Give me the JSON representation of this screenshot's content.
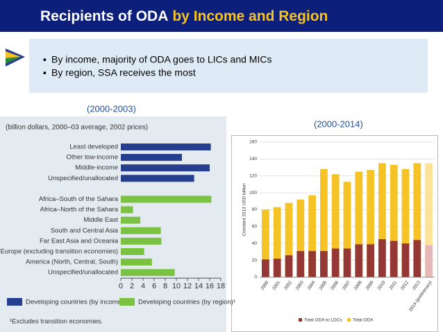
{
  "slide": {
    "title": "Recipients of ODA",
    "title_highlight": "by Income and Region",
    "bullets": [
      "By income, majority of ODA goes to LICs and MICs",
      "By region, SSA receives the most"
    ],
    "periods": [
      "(2000-2003)",
      "(2000-2014)"
    ]
  },
  "chart_data": [
    {
      "type": "hbar",
      "subtitle": "(billion dollars, 2000–03 average, 2002 prices)",
      "categories": [
        "Least developed",
        "Other low-income",
        "Middle-income",
        "Unspecified/unallocated",
        null,
        "Africa–South of the Sahara",
        "Africa–North of the Sahara",
        "Middle East",
        "South and Central Asia",
        "Far East Asia and Oceania",
        "Europe (excluding transition economies)",
        "America (North, Central, South)",
        "Unspecified/unallocated"
      ],
      "series": [
        {
          "name": "Developing countries (by income)¹",
          "color": "#253f8e",
          "values": [
            16.2,
            11,
            16,
            13.2,
            null,
            null,
            null,
            null,
            null,
            null,
            null,
            null,
            null
          ]
        },
        {
          "name": "Developing countries (by region)¹",
          "color": "#7cc242",
          "values": [
            null,
            null,
            null,
            null,
            null,
            16.3,
            2.2,
            3.5,
            7.2,
            7.3,
            4.2,
            5.6,
            9.7
          ]
        }
      ],
      "xlim": [
        0,
        18
      ],
      "xticks": [
        0,
        2,
        4,
        6,
        8,
        10,
        12,
        14,
        16,
        18
      ],
      "footnote": "¹Excludes transition economies."
    },
    {
      "type": "bar",
      "ylabel": "Constant 2013 USD billion",
      "categories": [
        "2000",
        "2001",
        "2002",
        "2003",
        "2004",
        "2005",
        "2006",
        "2007",
        "2008",
        "2009",
        "2010",
        "2011",
        "2012",
        "2013",
        "2014 (preliminary)"
      ],
      "series": [
        {
          "name": "Total ODA to LDCs",
          "color": "#953735",
          "last_color": "#e6b9b8",
          "values": [
            21,
            22,
            26,
            31,
            31,
            31,
            34,
            34,
            39,
            39,
            45,
            43,
            40,
            44,
            38
          ]
        },
        {
          "name": "Total ODA",
          "color": "#f5c325",
          "last_color": "#fbe39a",
          "values": [
            80,
            83,
            88,
            92,
            97,
            128,
            122,
            113,
            125,
            127,
            135,
            133,
            128,
            135,
            135
          ]
        }
      ],
      "ylim": [
        0,
        160
      ],
      "yticks": [
        0,
        20,
        40,
        60,
        80,
        100,
        120,
        140,
        160
      ],
      "grid": true
    }
  ]
}
